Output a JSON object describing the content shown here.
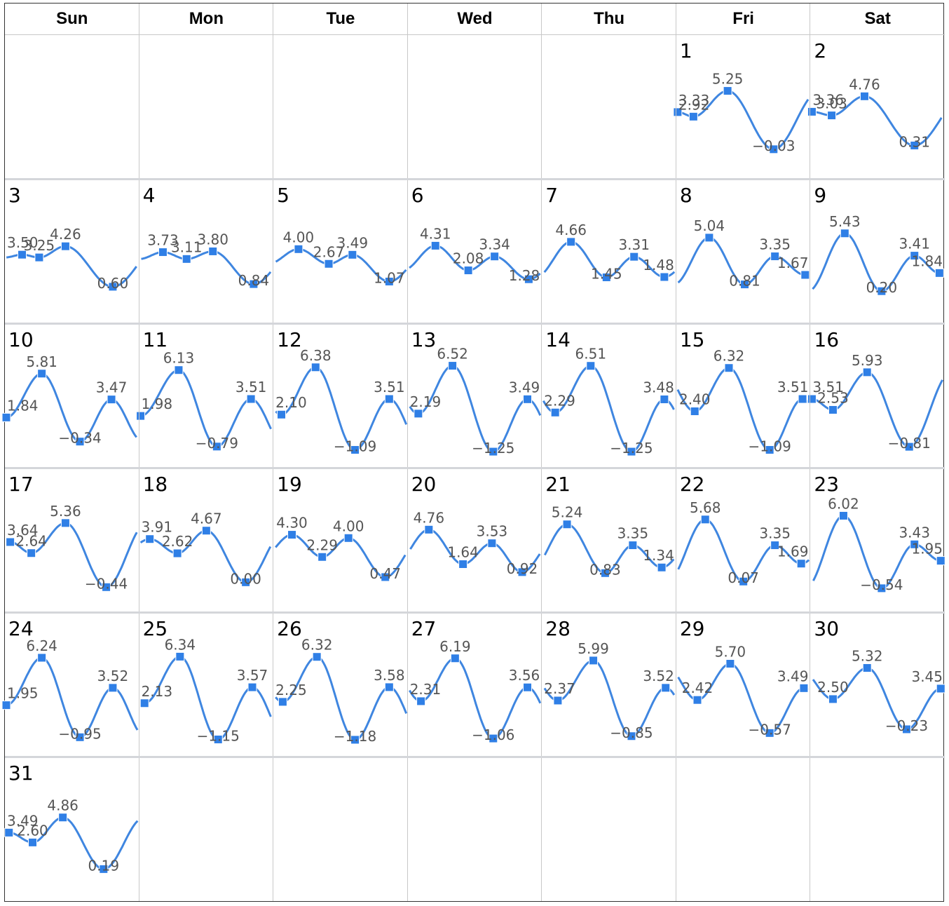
{
  "weekdays": [
    "Sun",
    "Mon",
    "Tue",
    "Wed",
    "Thu",
    "Fri",
    "Sat"
  ],
  "chart_data": {
    "type": "line",
    "first_weekday_index": 5,
    "days": [
      {
        "day": "1",
        "points": [
          [
            0.0,
            3.33
          ],
          [
            0.12,
            2.92
          ],
          [
            0.38,
            5.25
          ],
          [
            0.73,
            -0.03
          ]
        ]
      },
      {
        "day": "2",
        "points": [
          [
            0.0,
            3.36
          ],
          [
            0.15,
            3.03
          ],
          [
            0.4,
            4.76
          ],
          [
            0.78,
            0.31
          ]
        ]
      },
      {
        "day": "3",
        "points": [
          [
            0.12,
            3.5
          ],
          [
            0.25,
            3.25
          ],
          [
            0.45,
            4.26
          ],
          [
            0.81,
            0.6
          ]
        ]
      },
      {
        "day": "4",
        "points": [
          [
            0.17,
            3.73
          ],
          [
            0.35,
            3.11
          ],
          [
            0.55,
            3.8
          ],
          [
            0.86,
            0.84
          ]
        ]
      },
      {
        "day": "5",
        "points": [
          [
            0.18,
            4.0
          ],
          [
            0.41,
            2.67
          ],
          [
            0.59,
            3.49
          ],
          [
            0.87,
            1.07
          ]
        ]
      },
      {
        "day": "6",
        "points": [
          [
            0.2,
            4.31
          ],
          [
            0.45,
            2.08
          ],
          [
            0.65,
            3.34
          ],
          [
            0.91,
            1.28
          ]
        ]
      },
      {
        "day": "7",
        "points": [
          [
            0.21,
            4.66
          ],
          [
            0.48,
            1.45
          ],
          [
            0.69,
            3.31
          ],
          [
            0.92,
            1.48
          ]
        ]
      },
      {
        "day": "8",
        "points": [
          [
            0.24,
            5.04
          ],
          [
            0.51,
            0.81
          ],
          [
            0.74,
            3.35
          ],
          [
            0.97,
            1.67
          ]
        ]
      },
      {
        "day": "9",
        "points": [
          [
            0.25,
            5.43
          ],
          [
            0.53,
            0.2
          ],
          [
            0.78,
            3.41
          ],
          [
            0.97,
            1.84
          ]
        ]
      },
      {
        "day": "10",
        "points": [
          [
            0.0,
            1.84
          ],
          [
            0.27,
            5.81
          ],
          [
            0.56,
            -0.34
          ],
          [
            0.8,
            3.47
          ]
        ]
      },
      {
        "day": "11",
        "points": [
          [
            0.0,
            1.98
          ],
          [
            0.29,
            6.13
          ],
          [
            0.58,
            -0.79
          ],
          [
            0.84,
            3.51
          ]
        ]
      },
      {
        "day": "12",
        "points": [
          [
            0.05,
            2.1
          ],
          [
            0.31,
            6.38
          ],
          [
            0.61,
            -1.09
          ],
          [
            0.87,
            3.51
          ]
        ]
      },
      {
        "day": "13",
        "points": [
          [
            0.07,
            2.19
          ],
          [
            0.33,
            6.52
          ],
          [
            0.64,
            -1.25
          ],
          [
            0.9,
            3.49
          ]
        ]
      },
      {
        "day": "14",
        "points": [
          [
            0.09,
            2.29
          ],
          [
            0.36,
            6.51
          ],
          [
            0.67,
            -1.25
          ],
          [
            0.92,
            3.48
          ]
        ]
      },
      {
        "day": "15",
        "points": [
          [
            0.13,
            2.4
          ],
          [
            0.39,
            6.32
          ],
          [
            0.7,
            -1.09
          ],
          [
            0.95,
            3.51
          ]
        ]
      },
      {
        "day": "16",
        "points": [
          [
            0.0,
            3.51
          ],
          [
            0.16,
            2.53
          ],
          [
            0.42,
            5.93
          ],
          [
            0.74,
            -0.81
          ]
        ]
      },
      {
        "day": "17",
        "points": [
          [
            0.03,
            3.64
          ],
          [
            0.19,
            2.64
          ],
          [
            0.45,
            5.36
          ],
          [
            0.76,
            -0.44
          ]
        ]
      },
      {
        "day": "18",
        "points": [
          [
            0.07,
            3.91
          ],
          [
            0.28,
            2.62
          ],
          [
            0.5,
            4.67
          ],
          [
            0.8,
            0.0
          ]
        ]
      },
      {
        "day": "19",
        "points": [
          [
            0.13,
            4.3
          ],
          [
            0.36,
            2.29
          ],
          [
            0.56,
            4.0
          ],
          [
            0.84,
            0.47
          ]
        ]
      },
      {
        "day": "20",
        "points": [
          [
            0.15,
            4.76
          ],
          [
            0.41,
            1.64
          ],
          [
            0.63,
            3.53
          ],
          [
            0.86,
            0.92
          ]
        ]
      },
      {
        "day": "21",
        "points": [
          [
            0.18,
            5.24
          ],
          [
            0.47,
            0.83
          ],
          [
            0.68,
            3.35
          ],
          [
            0.9,
            1.34
          ]
        ]
      },
      {
        "day": "22",
        "points": [
          [
            0.21,
            5.68
          ],
          [
            0.5,
            0.07
          ],
          [
            0.74,
            3.35
          ],
          [
            0.94,
            1.69
          ]
        ]
      },
      {
        "day": "23",
        "points": [
          [
            0.24,
            6.02
          ],
          [
            0.53,
            -0.54
          ],
          [
            0.78,
            3.43
          ],
          [
            0.98,
            1.95
          ]
        ]
      },
      {
        "day": "24",
        "points": [
          [
            0.0,
            1.95
          ],
          [
            0.27,
            6.24
          ],
          [
            0.56,
            -0.95
          ],
          [
            0.81,
            3.52
          ]
        ]
      },
      {
        "day": "25",
        "points": [
          [
            0.03,
            2.13
          ],
          [
            0.3,
            6.34
          ],
          [
            0.59,
            -1.15
          ],
          [
            0.85,
            3.57
          ]
        ]
      },
      {
        "day": "26",
        "points": [
          [
            0.06,
            2.25
          ],
          [
            0.32,
            6.32
          ],
          [
            0.61,
            -1.18
          ],
          [
            0.87,
            3.58
          ]
        ]
      },
      {
        "day": "27",
        "points": [
          [
            0.09,
            2.31
          ],
          [
            0.35,
            6.19
          ],
          [
            0.64,
            -1.06
          ],
          [
            0.9,
            3.56
          ]
        ]
      },
      {
        "day": "28",
        "points": [
          [
            0.11,
            2.37
          ],
          [
            0.38,
            5.99
          ],
          [
            0.67,
            -0.85
          ],
          [
            0.93,
            3.52
          ]
        ]
      },
      {
        "day": "29",
        "points": [
          [
            0.15,
            2.42
          ],
          [
            0.4,
            5.7
          ],
          [
            0.7,
            -0.57
          ],
          [
            0.96,
            3.49
          ]
        ]
      },
      {
        "day": "30",
        "points": [
          [
            0.16,
            2.5
          ],
          [
            0.42,
            5.32
          ],
          [
            0.72,
            -0.23
          ],
          [
            0.98,
            3.45
          ]
        ]
      },
      {
        "day": "31",
        "points": [
          [
            0.02,
            3.49
          ],
          [
            0.2,
            2.6
          ],
          [
            0.43,
            4.86
          ],
          [
            0.74,
            0.19
          ]
        ]
      }
    ],
    "ylim": [
      -1.5,
      7.0
    ],
    "colors": {
      "line": "#3f86e0",
      "marker": "#2f7fe6",
      "label": "#555555"
    }
  }
}
